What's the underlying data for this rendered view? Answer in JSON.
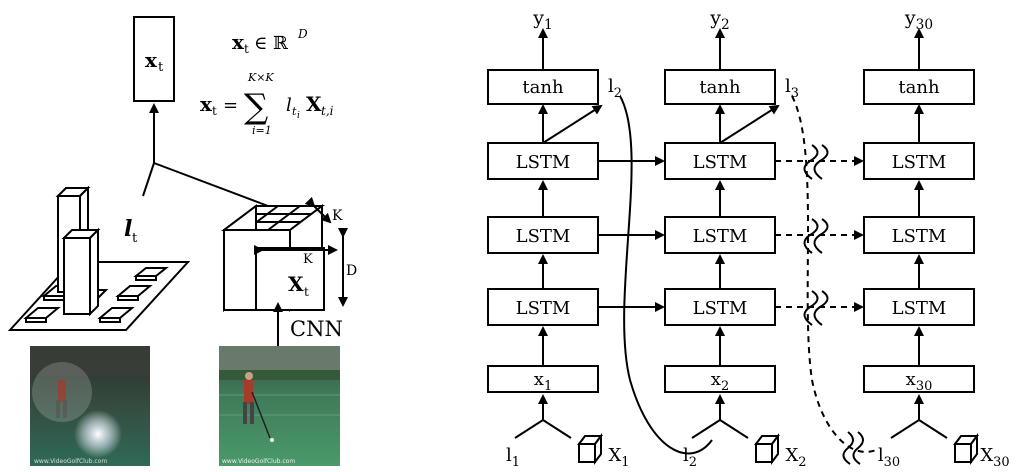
{
  "left_panel": {
    "xt_box_label": "x",
    "xt_box_sub": "t",
    "eq1_lhs": "x",
    "eq1_sub": "t",
    "eq1_rel": "∈ ℝ",
    "eq1_sup": "D",
    "eq2_lhs": "x",
    "eq2_sub": "t",
    "eq2_eq": "=",
    "eq2_sigma": "∑",
    "eq2_upper": "K×K",
    "eq2_lower": "i=1",
    "eq2_l": "l",
    "eq2_l_sub": "t",
    "eq2_l_subsub": "i",
    "eq2_X": "X",
    "eq2_X_sub": "t,i",
    "lt_label": "l",
    "lt_sub": "t",
    "cube_k_top": "K",
    "cube_k_front": "K",
    "cube_d": "D",
    "cube_X": "X",
    "cube_X_sub": "t",
    "cnn_label": "CNN",
    "img1_watermark": "www.VideoGolfClub.com",
    "img2_watermark": "www.VideoGolfClub.com"
  },
  "right_panel": {
    "columns": [
      {
        "y": "y",
        "y_sub": "1",
        "tanh": "tanh",
        "lstm": [
          "LSTM",
          "LSTM",
          "LSTM"
        ],
        "x": "x",
        "x_sub": "1",
        "l": "l",
        "l_sub": "1",
        "X": "X",
        "X_sub": "1",
        "att": "l",
        "att_sub": "2"
      },
      {
        "y": "y",
        "y_sub": "2",
        "tanh": "tanh",
        "lstm": [
          "LSTM",
          "LSTM",
          "LSTM"
        ],
        "x": "x",
        "x_sub": "2",
        "l": "l",
        "l_sub": "2",
        "X": "X",
        "X_sub": "2",
        "att": "l",
        "att_sub": "3"
      },
      {
        "y": "y",
        "y_sub": "30",
        "tanh": "tanh",
        "lstm": [
          "LSTM",
          "LSTM",
          "LSTM"
        ],
        "x": "x",
        "x_sub": "30",
        "l": "l",
        "l_sub": "30",
        "X": "X",
        "X_sub": "30"
      }
    ]
  }
}
